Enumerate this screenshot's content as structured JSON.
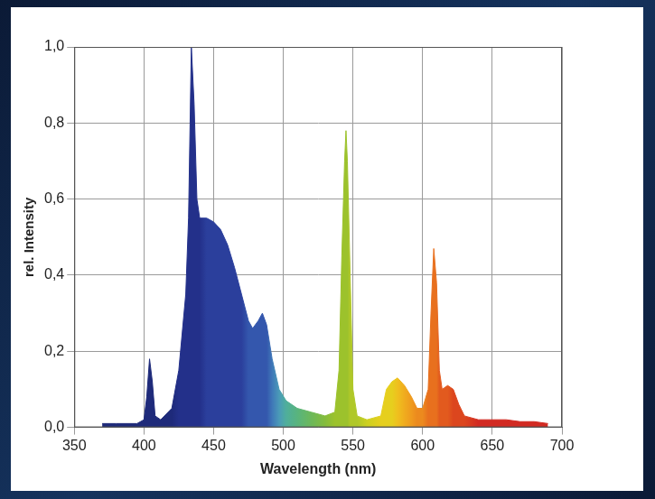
{
  "chart_data": {
    "type": "line",
    "x_label": "Wavelength (nm)",
    "y_label": "rel. Intensity",
    "xlim": [
      350,
      700
    ],
    "xticks": [
      350,
      400,
      450,
      500,
      550,
      600,
      650,
      700
    ],
    "ylim": [
      0,
      1
    ],
    "yticks": [
      {
        "value": 0,
        "label": "0,0"
      },
      {
        "value": 0.2,
        "label": "0,2"
      },
      {
        "value": 0.4,
        "label": "0,4"
      },
      {
        "value": 0.6,
        "label": "0,6"
      },
      {
        "value": 0.8,
        "label": "0,8"
      },
      {
        "value": 1,
        "label": "1,0"
      }
    ],
    "grid": true,
    "x": [
      370,
      380,
      395,
      400,
      402,
      404,
      406,
      408,
      412,
      420,
      425,
      430,
      432,
      434,
      436,
      438,
      440,
      445,
      450,
      455,
      460,
      465,
      470,
      475,
      478,
      482,
      485,
      488,
      492,
      497,
      502,
      510,
      520,
      530,
      537,
      540,
      542,
      544,
      545,
      546,
      548,
      550,
      553,
      560,
      570,
      574,
      578,
      582,
      587,
      592,
      596,
      600,
      604,
      606,
      608,
      610,
      612,
      614,
      618,
      622,
      626,
      630,
      640,
      650,
      660,
      670,
      680,
      690
    ],
    "series": [
      {
        "values": [
          0.01,
          0.01,
          0.01,
          0.02,
          0.08,
          0.18,
          0.12,
          0.03,
          0.02,
          0.05,
          0.15,
          0.35,
          0.55,
          1.0,
          0.85,
          0.6,
          0.55,
          0.55,
          0.54,
          0.52,
          0.48,
          0.42,
          0.35,
          0.28,
          0.26,
          0.28,
          0.3,
          0.27,
          0.18,
          0.1,
          0.07,
          0.05,
          0.04,
          0.03,
          0.04,
          0.15,
          0.45,
          0.7,
          0.78,
          0.7,
          0.4,
          0.1,
          0.03,
          0.02,
          0.03,
          0.1,
          0.12,
          0.13,
          0.11,
          0.08,
          0.05,
          0.05,
          0.1,
          0.3,
          0.47,
          0.38,
          0.15,
          0.1,
          0.11,
          0.1,
          0.06,
          0.03,
          0.02,
          0.02,
          0.02,
          0.015,
          0.015,
          0.01
        ],
        "colors": [
          "#1e2a7a",
          "#1e2a7a",
          "#1e2a7a",
          "#1e2a7a",
          "#1e2a7a",
          "#1e2a7a",
          "#1e2a7a",
          "#1e2a7a",
          "#1e2a7a",
          "#1e2a7a",
          "#23308a",
          "#23308a",
          "#23308a",
          "#23308a",
          "#23308a",
          "#23308a",
          "#23308a",
          "#2b3f9c",
          "#2b3f9c",
          "#2b3f9c",
          "#2b3f9c",
          "#2b3f9c",
          "#2b3f9c",
          "#3457ad",
          "#3457ad",
          "#3457ad",
          "#3457ad",
          "#3457ad",
          "#3f78b8",
          "#4a9ab8",
          "#4fae9c",
          "#58b47e",
          "#6cb85a",
          "#84bc3c",
          "#9cc22c",
          "#9cc22c",
          "#9cc22c",
          "#9cc22c",
          "#9cc22c",
          "#9cc22c",
          "#b0c828",
          "#b0c828",
          "#b0c828",
          "#ccd020",
          "#e6cf1e",
          "#e6cf1e",
          "#e6cf1e",
          "#efc01e",
          "#f0ac1e",
          "#ef9a1e",
          "#ec8a1e",
          "#ec8a1e",
          "#e8701e",
          "#e8701e",
          "#e8701e",
          "#e8701e",
          "#e25a1e",
          "#e25a1e",
          "#e25a1e",
          "#dc461e",
          "#dc461e",
          "#dc461e",
          "#d22a22",
          "#d22a22",
          "#d22a22",
          "#d22a22",
          "#d22a22",
          "#d22a22"
        ]
      }
    ]
  }
}
